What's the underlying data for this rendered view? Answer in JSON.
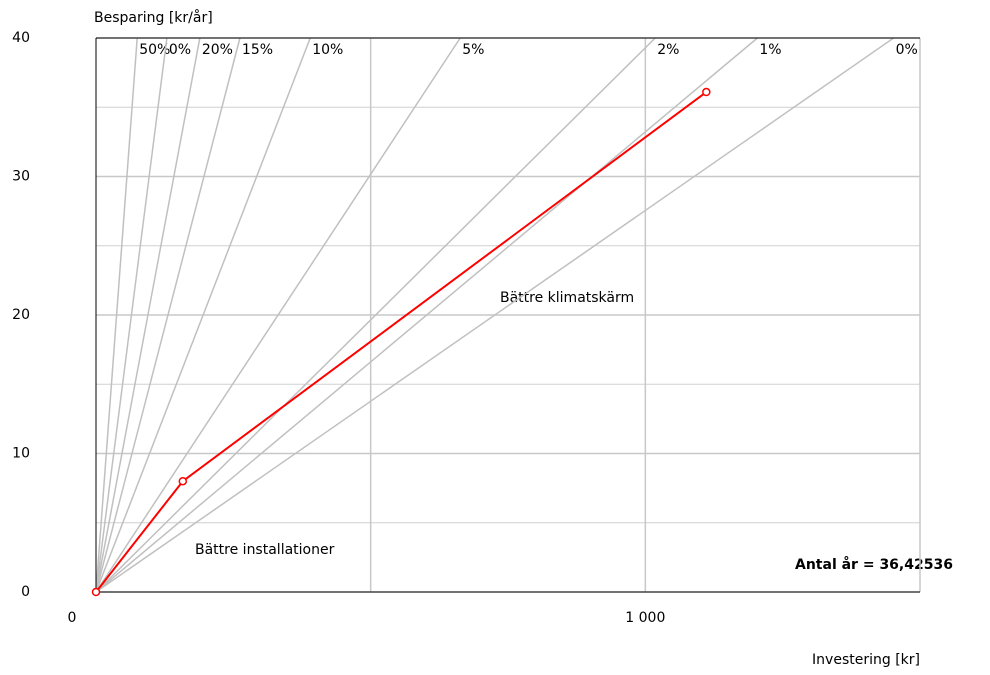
{
  "chart_data": {
    "type": "line",
    "y_label": "Besparing [kr/år]",
    "x_label": "Investering [kr]",
    "xlim": [
      0,
      1500
    ],
    "ylim": [
      0,
      40
    ],
    "xticks": [
      0,
      {
        "value": 1000,
        "label": "1 000"
      }
    ],
    "yticks": [
      0,
      10,
      20,
      30,
      40
    ],
    "xgrid": [
      500,
      1000
    ],
    "ygrid_minor": [
      5,
      15,
      25,
      35
    ],
    "grid": true,
    "rate_lines": {
      "color": "#c0c0c0",
      "labels": [
        "50%",
        "0%",
        "20%",
        "15%",
        "10%",
        "5%",
        "2%",
        "1%",
        "0%"
      ],
      "x": [
        75,
        129,
        189,
        262,
        390,
        663,
        1018,
        1204,
        1452
      ]
    },
    "series": [
      {
        "color": "#ff0000",
        "x": [
          0,
          158,
          1111
        ],
        "values": [
          0,
          8,
          36.1
        ]
      }
    ],
    "annotations": [
      "Bättre klimatskärm",
      "Bättre installationer",
      "Antal år = 36,42536"
    ]
  }
}
